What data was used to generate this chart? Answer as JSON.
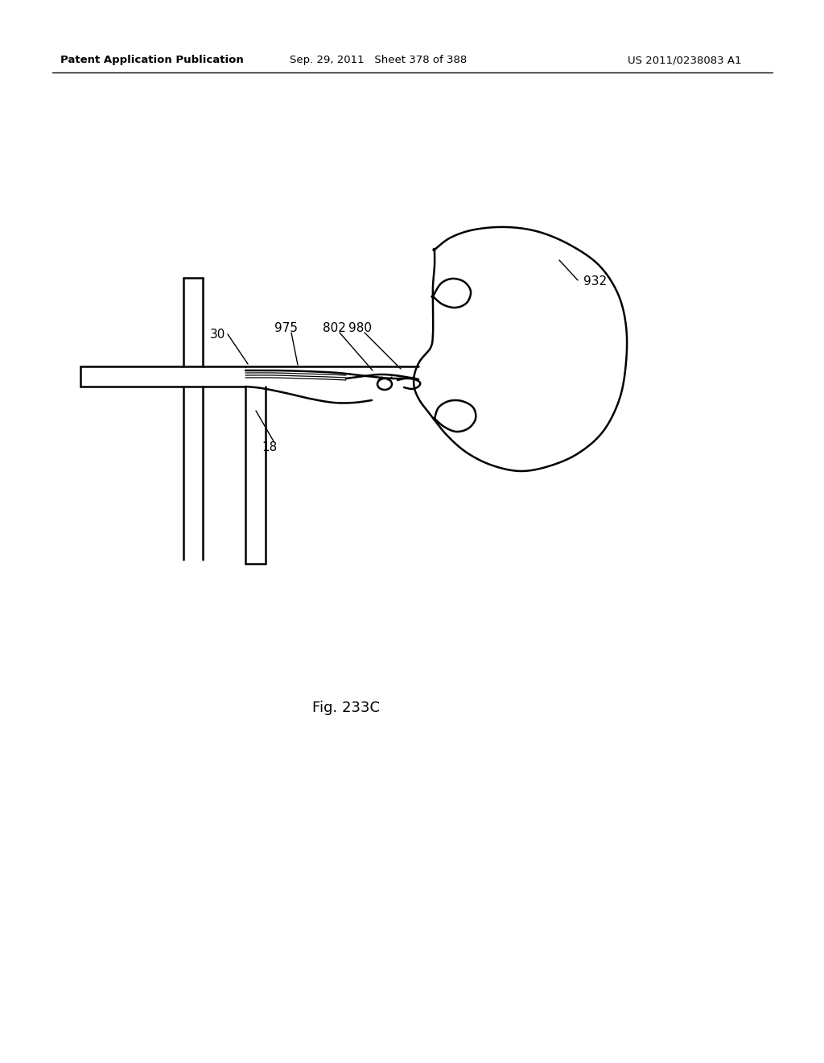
{
  "bg_color": "#ffffff",
  "line_color": "#000000",
  "header_left": "Patent Application Publication",
  "header_center": "Sep. 29, 2011   Sheet 378 of 388",
  "header_right": "US 2011/0238083 A1",
  "fig_label": "Fig. 233C"
}
